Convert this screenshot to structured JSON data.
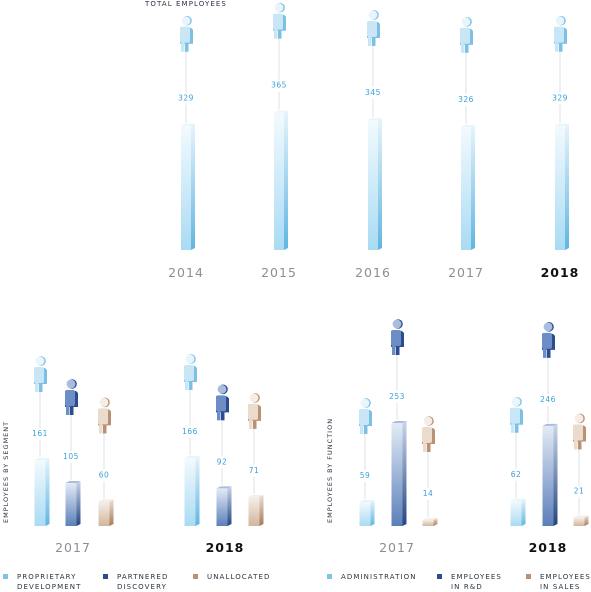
{
  "chart_data": [
    {
      "type": "bar",
      "title": "TOTAL EMPLOYEES",
      "categories": [
        "2014",
        "2015",
        "2016",
        "2017",
        "2018"
      ],
      "values": [
        329,
        365,
        345,
        326,
        329
      ],
      "highlight_category": "2018",
      "ylim": [
        0,
        400
      ]
    },
    {
      "type": "bar",
      "title": "EMPLOYEES BY SEGMENT",
      "categories": [
        "2017",
        "2018"
      ],
      "highlight_category": "2018",
      "series": [
        {
          "name": "PROPRIETARY DEVELOPMENT",
          "values": [
            161,
            166
          ]
        },
        {
          "name": "PARTNERED DISCOVERY",
          "values": [
            105,
            92
          ]
        },
        {
          "name": "UNALLOCATED",
          "values": [
            60,
            71
          ]
        }
      ]
    },
    {
      "type": "bar",
      "title": "EMPLOYEES BY FUNCTION",
      "categories": [
        "2017",
        "2018"
      ],
      "highlight_category": "2018",
      "series": [
        {
          "name": "ADMINISTRATION",
          "values": [
            59,
            62
          ]
        },
        {
          "name": "EMPLOYEES IN R&D",
          "values": [
            253,
            246
          ]
        },
        {
          "name": "EMPLOYEES IN SALES",
          "values": [
            14,
            21
          ]
        }
      ]
    }
  ],
  "legend_segment": [
    {
      "line1": "PROPRIETARY",
      "line2": "DEVELOPMENT"
    },
    {
      "line1": "PARTNERED",
      "line2": "DISCOVERY"
    },
    {
      "line1": "UNALLOCATED",
      "line2": ""
    }
  ],
  "legend_function": [
    {
      "line1": "ADMINISTRATION",
      "line2": ""
    },
    {
      "line1": "EMPLOYEES",
      "line2": "IN R&D"
    },
    {
      "line1": "EMPLOYEES",
      "line2": "IN SALES"
    }
  ],
  "colors": {
    "light_blue": "#7cc4e8",
    "navy": "#2b4d8f",
    "tan": "#b89273",
    "value_label": "#3aa0d8",
    "year_label": "#8a8f96",
    "year_highlight": "#111111"
  }
}
